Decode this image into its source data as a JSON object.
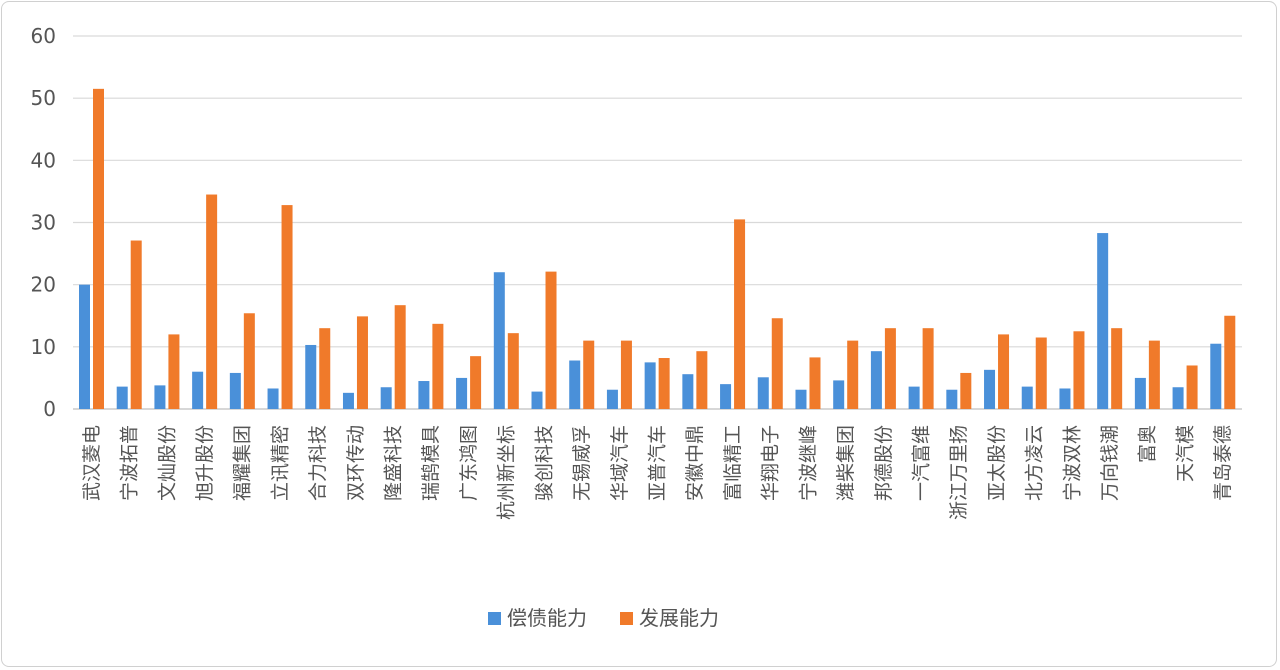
{
  "chart_data": {
    "type": "bar",
    "categories": [
      "武汉菱电",
      "宁波拓普",
      "文灿股份",
      "旭升股份",
      "福耀集团",
      "立讯精密",
      "合力科技",
      "双环传动",
      "隆盛科技",
      "瑞鹄模具",
      "广东鸿图",
      "杭州新坐标",
      "骏创科技",
      "无锡威孚",
      "华域汽车",
      "亚普汽车",
      "安徽中鼎",
      "富临精工",
      "华翔电子",
      "宁波继峰",
      "潍柴集团",
      "邦德股份",
      "一汽富维",
      "浙江万里扬",
      "亚太股份",
      "北方凌云",
      "宁波双林",
      "万向钱潮",
      "富奥",
      "天汽模",
      "青岛泰德"
    ],
    "series": [
      {
        "name": "偿债能力",
        "color": "#4a90d9",
        "values": [
          20,
          3.6,
          3.8,
          6,
          5.8,
          3.3,
          10.3,
          2.6,
          3.5,
          4.5,
          5,
          22,
          2.8,
          7.8,
          3.1,
          7.5,
          5.6,
          4,
          5.1,
          3.1,
          4.6,
          9.3,
          3.6,
          3.1,
          6.3,
          3.6,
          3.3,
          28.3,
          5,
          3.5,
          10.5
        ]
      },
      {
        "name": "发展能力",
        "color": "#f07a2a",
        "values": [
          51.5,
          27.1,
          12,
          34.5,
          15.4,
          32.8,
          13,
          14.9,
          16.7,
          13.7,
          8.5,
          12.2,
          22.1,
          11,
          11,
          8.2,
          9.3,
          30.5,
          14.6,
          8.3,
          11,
          13,
          13,
          5.8,
          12,
          11.5,
          12.5,
          13,
          11,
          7,
          15
        ]
      }
    ],
    "y_ticks": [
      "0",
      "10",
      "20",
      "30",
      "40",
      "50",
      "60"
    ],
    "ylim": [
      0,
      60
    ],
    "grid": true,
    "legend_position": "bottom-center"
  }
}
